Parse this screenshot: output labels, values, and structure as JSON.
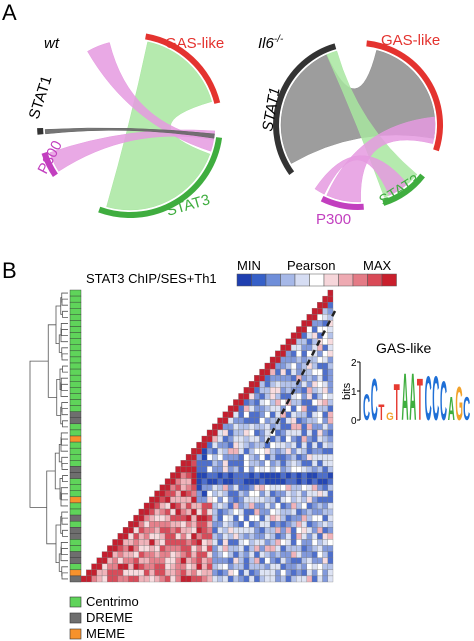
{
  "panel_a": {
    "letter": "A",
    "wt": {
      "title": "wt",
      "labels": {
        "gas": "GAS-like",
        "stat1": "STAT1",
        "p300": "P300",
        "stat3": "STAT3"
      }
    },
    "il6": {
      "title": "Il6",
      "title_sup": "-/-",
      "labels": {
        "gas": "GAS-like",
        "stat1": "STAT1",
        "p300": "P300",
        "stat3": "STAT3"
      }
    }
  },
  "panel_b": {
    "letter": "B",
    "heatmap_title": "STAT3 ChIP/SES+Th1",
    "scale": {
      "min_label": "MIN",
      "mid_label": "Pearson",
      "max_label": "MAX"
    },
    "motif": {
      "title": "GAS-like",
      "ylabel": "bits",
      "yticks": [
        "0",
        "1",
        "2"
      ],
      "letters": [
        "C",
        "C",
        "T",
        "G",
        "T",
        "A",
        "A",
        "T",
        "C",
        "C",
        "C",
        "A",
        "G",
        "C"
      ]
    },
    "legend": [
      {
        "label": "Centrimo",
        "color": "#5fd45a"
      },
      {
        "label": "DREME",
        "color": "#6e6e6e"
      },
      {
        "label": "MEME",
        "color": "#f7922c"
      }
    ]
  },
  "colors": {
    "gas": "#e4332f",
    "stat1": "#333333",
    "p300": "#c23fbf",
    "stat3": "#3fad3f",
    "ribbon_green": "#a8e6a0",
    "ribbon_pink": "#e59ae0",
    "ribbon_gray": "#8c8c8c",
    "centrimo": "#5fd45a",
    "dreme": "#6e6e6e",
    "meme": "#f7922c",
    "motif_C": "#1f6fd6",
    "motif_T": "#e63a30",
    "motif_G": "#f2a22b",
    "motif_A": "#3fae3f"
  }
}
